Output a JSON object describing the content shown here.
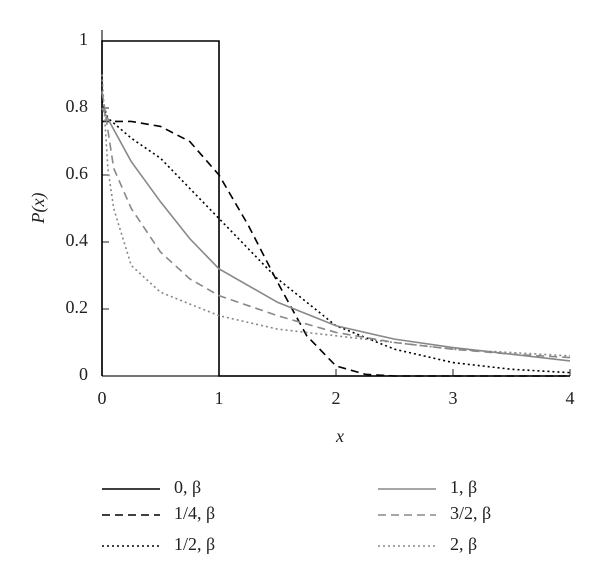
{
  "chart_data": {
    "type": "line",
    "x_label": "x",
    "y_label": "P(x)",
    "xlim": [
      0,
      4
    ],
    "ylim": [
      0,
      1
    ],
    "xticks": [
      0,
      1,
      2,
      3,
      4
    ],
    "yticks": [
      0,
      0.2,
      0.4,
      0.6,
      0.8,
      1
    ],
    "series": [
      {
        "name": "0, β",
        "color": "#000000",
        "dash": "solid",
        "x": [
          0,
          0,
          1,
          1,
          4
        ],
        "values": [
          0,
          1,
          1,
          0,
          0
        ]
      },
      {
        "name": "1/4, β",
        "color": "#000000",
        "dash": "dashed",
        "x": [
          0,
          0.25,
          0.5,
          0.75,
          1,
          1.25,
          1.5,
          1.75,
          2,
          2.25,
          2.5,
          3,
          4
        ],
        "values": [
          0.76,
          0.76,
          0.745,
          0.7,
          0.6,
          0.45,
          0.28,
          0.12,
          0.03,
          0.005,
          0,
          0,
          0
        ]
      },
      {
        "name": "1/2, β",
        "color": "#000000",
        "dash": "dotted",
        "x": [
          0,
          0.05,
          0.25,
          0.5,
          0.75,
          1,
          1.5,
          2,
          2.5,
          3,
          3.5,
          4
        ],
        "values": [
          0.82,
          0.77,
          0.71,
          0.65,
          0.56,
          0.47,
          0.29,
          0.15,
          0.08,
          0.04,
          0.02,
          0.01
        ]
      },
      {
        "name": "1, β",
        "color": "#888888",
        "dash": "solid",
        "x": [
          0,
          0.25,
          0.5,
          0.75,
          1,
          1.5,
          2,
          2.5,
          3,
          3.5,
          4
        ],
        "values": [
          0.8,
          0.64,
          0.52,
          0.41,
          0.32,
          0.22,
          0.15,
          0.11,
          0.085,
          0.065,
          0.045
        ]
      },
      {
        "name": "3/2, β",
        "color": "#888888",
        "dash": "dashed",
        "x": [
          0,
          0.1,
          0.25,
          0.5,
          0.75,
          1,
          1.5,
          2,
          2.5,
          3,
          3.5,
          4
        ],
        "values": [
          0.85,
          0.62,
          0.5,
          0.37,
          0.29,
          0.24,
          0.18,
          0.13,
          0.1,
          0.08,
          0.065,
          0.055
        ]
      },
      {
        "name": "2, β",
        "color": "#888888",
        "dash": "dotted",
        "x": [
          0,
          0.05,
          0.1,
          0.25,
          0.5,
          1,
          1.5,
          2,
          2.5,
          3,
          3.5,
          4
        ],
        "values": [
          0.9,
          0.62,
          0.5,
          0.33,
          0.25,
          0.18,
          0.14,
          0.12,
          0.1,
          0.08,
          0.07,
          0.06
        ]
      }
    ]
  }
}
